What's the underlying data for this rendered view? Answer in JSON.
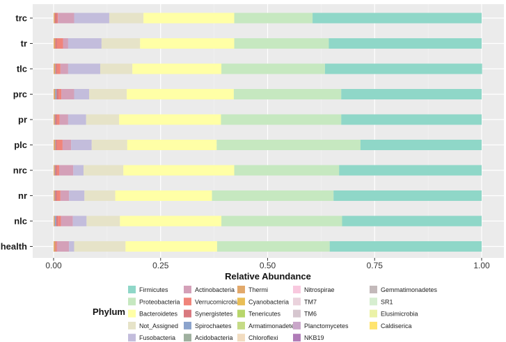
{
  "chart_data": {
    "type": "bar",
    "orientation": "horizontal",
    "stacked": true,
    "xlabel": "Relative Abundance",
    "x_ticks": [
      "0.00",
      "0.25",
      "0.50",
      "0.75",
      "1.00"
    ],
    "xlim": [
      0,
      1
    ],
    "grid": true,
    "legend_title": "Phylum",
    "legend_position": "bottom",
    "categories": [
      "trc",
      "tr",
      "tlc",
      "prc",
      "pr",
      "plc",
      "nrc",
      "nr",
      "nlc",
      "health"
    ],
    "series": [
      {
        "name": "Chloroflexi",
        "color": "#F2DCC0",
        "values": [
          0.0,
          0.0,
          0.0,
          0.0,
          0.0,
          0.0,
          0.0,
          0.0,
          0.0,
          0.0
        ]
      },
      {
        "name": "Armatimonadetes",
        "color": "#C5DB86",
        "values": [
          0.0,
          0.0,
          0.0,
          0.0,
          0.0,
          0.0,
          0.0,
          0.0,
          0.0,
          0.0
        ]
      },
      {
        "name": "Tenericutes",
        "color": "#B8D66B",
        "values": [
          0.0,
          0.0,
          0.0,
          0.0,
          0.0,
          0.0,
          0.0,
          0.0,
          0.0,
          0.0
        ]
      },
      {
        "name": "Cyanobacteria",
        "color": "#E9BE56",
        "values": [
          0.0,
          0.0,
          0.0,
          0.0,
          0.0,
          0.0,
          0.0,
          0.0,
          0.0,
          0.0
        ]
      },
      {
        "name": "Thermi",
        "color": "#E2A96B",
        "values": [
          0.003,
          0.004,
          0.004,
          0.004,
          0.003,
          0.004,
          0.003,
          0.003,
          0.003,
          0.004
        ]
      },
      {
        "name": "Acidobacteria",
        "color": "#9FB09F",
        "values": [
          0.0,
          0.0,
          0.0,
          0.0,
          0.0,
          0.0,
          0.0,
          0.0,
          0.0,
          0.0
        ]
      },
      {
        "name": "Spirochaetes",
        "color": "#8BA3CC",
        "values": [
          0.0,
          0.0,
          0.001,
          0.003,
          0.001,
          0.001,
          0.001,
          0.001,
          0.003,
          0.0
        ]
      },
      {
        "name": "Synergistetes",
        "color": "#D9797F",
        "values": [
          0.005,
          0.004,
          0.003,
          0.005,
          0.004,
          0.003,
          0.004,
          0.004,
          0.004,
          0.002
        ]
      },
      {
        "name": "Verrucomicrobia",
        "color": "#F0847A",
        "values": [
          0.002,
          0.014,
          0.008,
          0.006,
          0.006,
          0.013,
          0.005,
          0.008,
          0.007,
          0.002
        ]
      },
      {
        "name": "Actinobacteria",
        "color": "#D4A0B8",
        "values": [
          0.038,
          0.012,
          0.018,
          0.03,
          0.02,
          0.02,
          0.033,
          0.02,
          0.028,
          0.028
        ]
      },
      {
        "name": "Fusobacteria",
        "color": "#C3BDDC",
        "values": [
          0.082,
          0.078,
          0.075,
          0.035,
          0.042,
          0.048,
          0.024,
          0.036,
          0.032,
          0.012
        ]
      },
      {
        "name": "Not_Assigned",
        "color": "#E6E3C8",
        "values": [
          0.08,
          0.09,
          0.075,
          0.088,
          0.077,
          0.083,
          0.093,
          0.072,
          0.078,
          0.12
        ]
      },
      {
        "name": "Bacteroidetes",
        "color": "#FFFFA6",
        "values": [
          0.212,
          0.22,
          0.208,
          0.25,
          0.238,
          0.209,
          0.259,
          0.226,
          0.237,
          0.214
        ]
      },
      {
        "name": "Proteobacteria",
        "color": "#C6E8C0",
        "values": [
          0.183,
          0.221,
          0.242,
          0.251,
          0.281,
          0.336,
          0.245,
          0.284,
          0.282,
          0.263
        ]
      },
      {
        "name": "Firmicutes",
        "color": "#8FD7C8",
        "values": [
          0.395,
          0.357,
          0.367,
          0.328,
          0.328,
          0.283,
          0.333,
          0.346,
          0.326,
          0.355
        ]
      }
    ],
    "legend": [
      {
        "label": "Firmicutes",
        "color": "#8FD7C8"
      },
      {
        "label": "Proteobacteria",
        "color": "#C6E8C0"
      },
      {
        "label": "Bacteroidetes",
        "color": "#FFFFA6"
      },
      {
        "label": "Not_Assigned",
        "color": "#E6E3C8"
      },
      {
        "label": "Fusobacteria",
        "color": "#C3BDDC"
      },
      {
        "label": "Actinobacteria",
        "color": "#D4A0B8"
      },
      {
        "label": "Verrucomicrobia",
        "color": "#F0847A"
      },
      {
        "label": "Synergistetes",
        "color": "#D9797F"
      },
      {
        "label": "Spirochaetes",
        "color": "#8BA3CC"
      },
      {
        "label": "Acidobacteria",
        "color": "#9FB09F"
      },
      {
        "label": "Thermi",
        "color": "#E2A96B"
      },
      {
        "label": "Cyanobacteria",
        "color": "#E9BE56"
      },
      {
        "label": "Tenericutes",
        "color": "#B8D66B"
      },
      {
        "label": "Armatimonadetes",
        "color": "#C5DB86"
      },
      {
        "label": "Chloroflexi",
        "color": "#F2DCC0"
      },
      {
        "label": "Nitrospirae",
        "color": "#F8C8DE"
      },
      {
        "label": "TM7",
        "color": "#EAD2DC"
      },
      {
        "label": "TM6",
        "color": "#D6C6CF"
      },
      {
        "label": "Planctomycetes",
        "color": "#C9A6C9"
      },
      {
        "label": "NKB19",
        "color": "#B07CB8"
      },
      {
        "label": "Gemmatimonadetes",
        "color": "#C3B9BA"
      },
      {
        "label": "SR1",
        "color": "#D6EED0"
      },
      {
        "label": "Elusimicrobia",
        "color": "#EBF2A6"
      },
      {
        "label": "Caldiserica",
        "color": "#FFE46E"
      }
    ]
  }
}
